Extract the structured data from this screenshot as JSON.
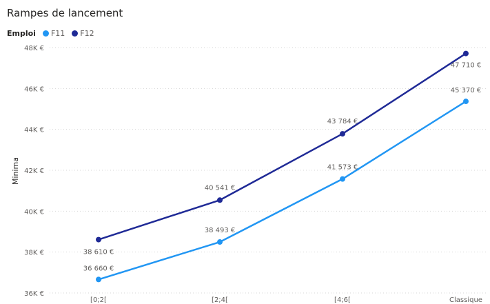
{
  "chart_data": {
    "type": "line",
    "title": "Rampes de lancement",
    "legend_title": "Emploi",
    "legend_position": "top-left",
    "ylabel": "Minima",
    "xlabel": "",
    "grid": true,
    "categories": [
      "[0;2[",
      "[2;4[",
      "[4;6[",
      "Classique"
    ],
    "ylim": [
      36000,
      48000
    ],
    "yticks": [
      {
        "value": 36000,
        "label": "36K €"
      },
      {
        "value": 38000,
        "label": "38K €"
      },
      {
        "value": 40000,
        "label": "40K €"
      },
      {
        "value": 42000,
        "label": "42K €"
      },
      {
        "value": 44000,
        "label": "44K €"
      },
      {
        "value": 46000,
        "label": "46K €"
      },
      {
        "value": 48000,
        "label": "48K €"
      }
    ],
    "series": [
      {
        "name": "F11",
        "color": "#2196f3",
        "values": [
          36660,
          38493,
          41573,
          45370
        ],
        "labels": [
          "36 660 €",
          "38 493 €",
          "41 573 €",
          "45 370 €"
        ]
      },
      {
        "name": "F12",
        "color": "#1f2a96",
        "values": [
          38610,
          40541,
          43784,
          47710
        ],
        "labels": [
          "38 610 €",
          "40 541 €",
          "43 784 €",
          "47 710 €"
        ]
      }
    ]
  }
}
